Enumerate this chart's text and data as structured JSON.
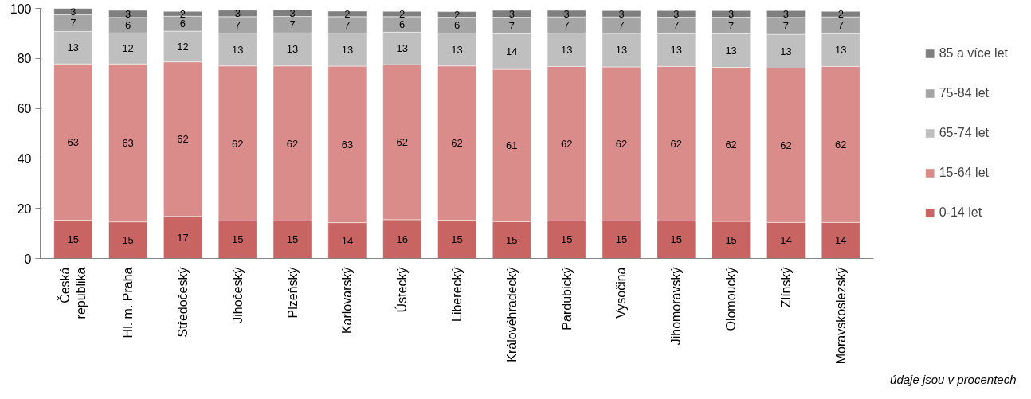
{
  "chart_data": {
    "type": "bar",
    "stacked": true,
    "categories": [
      "Česká republika",
      "Hl. m. Praha",
      "Středočeský",
      "Jihočeský",
      "Plzeňský",
      "Karlovarský",
      "Ústecký",
      "Liberecký",
      "Královéhradecký",
      "Pardubický",
      "Vysočina",
      "Jihomoravský",
      "Olomoucký",
      "Zlínský",
      "Moravskoslezský"
    ],
    "series": [
      {
        "name": "0-14 let",
        "color": "#c86462",
        "values": [
          15.3,
          14.6,
          16.8,
          15.0,
          15.0,
          14.3,
          15.5,
          15.3,
          14.7,
          15.0,
          15.0,
          15.0,
          14.8,
          14.4,
          14.4
        ],
        "value_labels": [
          "15",
          "15",
          "17",
          "15",
          "15",
          "14",
          "16",
          "15",
          "15",
          "15",
          "15",
          "15",
          "15",
          "14",
          "14"
        ]
      },
      {
        "name": "15-64 let",
        "color": "#d98c8a",
        "values": [
          62.5,
          63.2,
          61.8,
          62.0,
          62.0,
          62.6,
          62.0,
          61.7,
          60.9,
          61.8,
          61.6,
          61.8,
          61.6,
          61.7,
          62.4
        ],
        "value_labels": [
          "63",
          "63",
          "62",
          "62",
          "62",
          "63",
          "62",
          "62",
          "61",
          "62",
          "62",
          "62",
          "62",
          "62",
          "62"
        ]
      },
      {
        "name": "65-74 let",
        "color": "#bfbfbf",
        "values": [
          13.0,
          12.4,
          12.3,
          13.1,
          13.2,
          13.2,
          13.0,
          13.1,
          14.2,
          13.3,
          13.4,
          13.1,
          13.4,
          13.5,
          13.1
        ],
        "value_labels": [
          "13",
          "12",
          "12",
          "13",
          "13",
          "13",
          "13",
          "13",
          "14",
          "13",
          "13",
          "13",
          "13",
          "13",
          "13"
        ]
      },
      {
        "name": "75-84 let",
        "color": "#a5a5a5",
        "values": [
          6.7,
          6.2,
          6.0,
          6.6,
          6.6,
          6.6,
          6.2,
          6.4,
          6.7,
          6.5,
          6.6,
          6.6,
          6.7,
          6.8,
          6.7
        ],
        "value_labels": [
          "7",
          "6",
          "6",
          "7",
          "7",
          "7",
          "6",
          "6",
          "7",
          "7",
          "7",
          "7",
          "7",
          "7",
          "7"
        ]
      },
      {
        "name": "85 a více let",
        "color": "#7f7f7f",
        "values": [
          2.5,
          2.8,
          1.9,
          2.6,
          2.6,
          2.2,
          2.1,
          2.2,
          2.7,
          2.6,
          2.5,
          2.6,
          2.6,
          2.7,
          2.2
        ],
        "value_labels": [
          "3",
          "3",
          "2",
          "3",
          "3",
          "2",
          "2",
          "2",
          "3",
          "3",
          "3",
          "3",
          "3",
          "3",
          "2"
        ]
      }
    ],
    "ylim": [
      0,
      100
    ],
    "yticks": [
      0,
      20,
      40,
      60,
      80,
      100
    ],
    "grid": false,
    "legend": "right",
    "annotations": [
      "údaje jsou v procentech"
    ]
  }
}
